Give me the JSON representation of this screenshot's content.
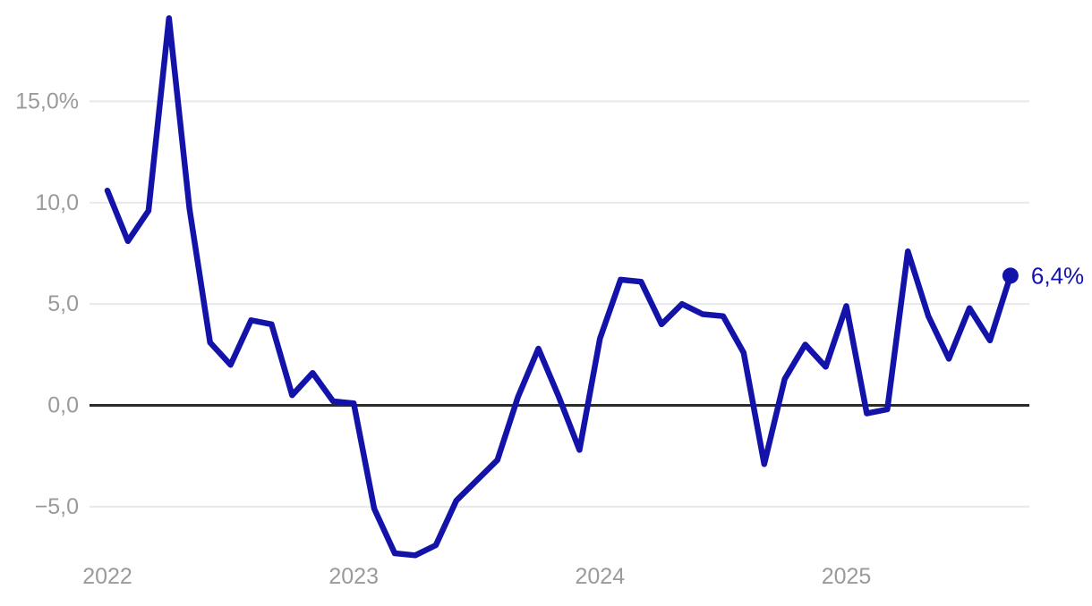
{
  "chart_data": {
    "type": "line",
    "title": "",
    "unit": "percent",
    "decimal_style": "comma",
    "x_range": [
      "2022-01",
      "2025-09"
    ],
    "frequency": "monthly",
    "series": [
      {
        "name": "monthly-percent-change",
        "start_month": "2022-01",
        "values": [
          10.6,
          8.1,
          9.6,
          19.1,
          9.7,
          3.1,
          2.0,
          4.2,
          4.0,
          0.5,
          1.6,
          0.2,
          0.1,
          -5.1,
          -7.3,
          -7.4,
          -6.9,
          -4.7,
          -3.7,
          -2.7,
          0.4,
          2.8,
          0.4,
          -2.2,
          3.3,
          6.2,
          6.1,
          4.0,
          5.0,
          4.5,
          4.4,
          2.6,
          -2.9,
          1.3,
          3.0,
          1.9,
          4.9,
          -0.4,
          -0.2,
          7.6,
          4.4,
          2.3,
          4.8,
          3.2,
          6.4
        ]
      }
    ],
    "end_point": {
      "value": 6.4,
      "label": "6,4%"
    },
    "y_axis": {
      "ylim": [
        -9.9,
        20.0
      ],
      "ticks": [
        {
          "value": 15,
          "label": "15,0%"
        },
        {
          "value": 10,
          "label": "10,0"
        },
        {
          "value": 5,
          "label": "5,0"
        },
        {
          "value": 0,
          "label": "0,0"
        },
        {
          "value": -5,
          "label": "−5,0"
        }
      ],
      "zero_line": true
    },
    "x_axis": {
      "ticks": [
        {
          "label": "2022",
          "month_index": 0
        },
        {
          "label": "2023",
          "month_index": 12
        },
        {
          "label": "2024",
          "month_index": 24
        },
        {
          "label": "2025",
          "month_index": 36
        }
      ]
    },
    "grid": "horizontal-only",
    "legend": "none",
    "colors": {
      "line": "#1313aa",
      "end_label": "#1313aa",
      "axis_label": "#9a9a9a",
      "gridline": "#e8e8e8",
      "zero_line": "#2b2b2b",
      "background": "#ffffff"
    }
  }
}
